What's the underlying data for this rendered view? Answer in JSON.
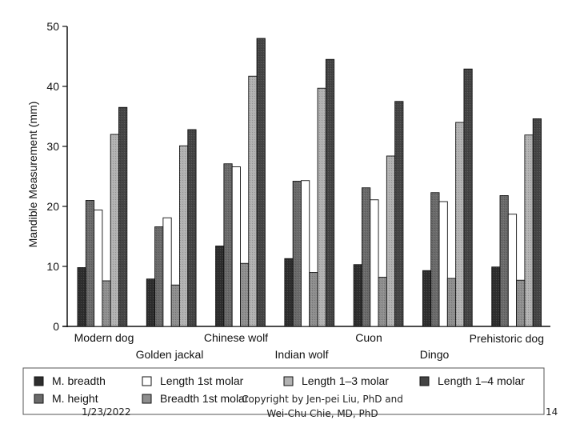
{
  "chart_data": {
    "type": "bar",
    "title": "",
    "xlabel": "",
    "ylabel": "Mandible Measurement (mm)",
    "ylim": [
      0,
      50
    ],
    "yticks": [
      0,
      10,
      20,
      30,
      40,
      50
    ],
    "grid": false,
    "legend_position": "bottom",
    "categories": [
      "Modern dog",
      "Golden jackal",
      "Chinese wolf",
      "Indian wolf",
      "Cuon",
      "Dingo",
      "Prehistoric dog"
    ],
    "series": [
      {
        "name": "M. breadth",
        "color": "#2e2e2e",
        "values": [
          9.8,
          7.9,
          13.4,
          11.3,
          10.3,
          9.3,
          9.9
        ]
      },
      {
        "name": "M. height",
        "color": "#6a6a6a",
        "values": [
          21.0,
          16.6,
          27.1,
          24.2,
          23.1,
          22.3,
          21.8
        ]
      },
      {
        "name": "Length 1st molar",
        "color": "#ffffff",
        "values": [
          19.4,
          18.1,
          26.6,
          24.3,
          21.1,
          20.8,
          18.7
        ]
      },
      {
        "name": "Breadth 1st molar",
        "color": "#8e8e8e",
        "values": [
          7.6,
          6.9,
          10.5,
          9.0,
          8.2,
          8.0,
          7.7
        ]
      },
      {
        "name": "Length 1–3 molar",
        "color": "#b2b2b2",
        "values": [
          32.0,
          30.1,
          41.7,
          39.7,
          28.4,
          34.0,
          31.9
        ]
      },
      {
        "name": "Length 1–4 molar",
        "color": "#444444",
        "values": [
          36.5,
          32.8,
          48.0,
          44.5,
          37.5,
          42.9,
          34.6
        ]
      }
    ]
  },
  "legend_order": [
    0,
    2,
    4,
    5,
    1,
    3
  ],
  "footer": {
    "date": "1/23/2022",
    "copyright_line1": "Copyright by Jen-pei Liu, PhD and",
    "copyright_line2": "Wei-Chu Chie, MD, PhD",
    "page": "14"
  }
}
